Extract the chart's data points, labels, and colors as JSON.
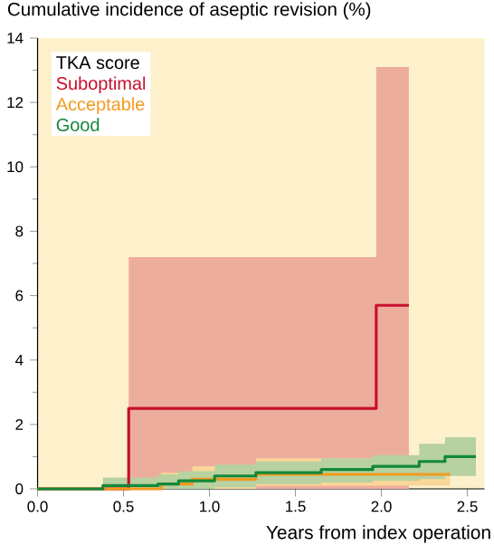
{
  "chart_data": {
    "type": "step",
    "ylabel": "Cumulative incidence of aseptic revision (%)",
    "xlabel": "Years from index operation",
    "legend_title": "TKA score",
    "legend": "top left",
    "xlim": [
      0,
      2.6
    ],
    "ylim": [
      0,
      14
    ],
    "xticks": [
      {
        "value": 0,
        "label": "0.0"
      },
      0.5,
      {
        "value": 1,
        "label": "1.0"
      },
      1.5,
      {
        "value": 2,
        "label": "2.0"
      },
      2.5
    ],
    "yticks": [
      0,
      2,
      4,
      6,
      8,
      10,
      12,
      14
    ],
    "series": [
      {
        "name": "Suboptimal",
        "color": "#c8102e",
        "x": [
          0,
          0.53,
          1.97,
          2.16
        ],
        "values": [
          0,
          2.5,
          5.7,
          5.7
        ],
        "lower": [
          0,
          0,
          0,
          0
        ],
        "upper": [
          0,
          7.2,
          13.1,
          13.1
        ]
      },
      {
        "name": "Acceptable",
        "color": "#f29a1f",
        "x": [
          0,
          0.72,
          0.9,
          1.27,
          2.4
        ],
        "values": [
          0,
          0.15,
          0.3,
          0.45,
          0.45
        ],
        "lower": [
          0,
          0,
          0,
          0.1,
          0.1
        ],
        "upper": [
          0,
          0.5,
          0.7,
          0.95,
          0.95
        ]
      },
      {
        "name": "Good",
        "color": "#12883a",
        "x": [
          0,
          0.38,
          0.7,
          0.82,
          1.03,
          1.27,
          1.65,
          1.95,
          2.22,
          2.37,
          2.55
        ],
        "values": [
          0,
          0.1,
          0.15,
          0.25,
          0.4,
          0.5,
          0.6,
          0.7,
          0.85,
          1.0,
          1.0
        ],
        "lower": [
          0,
          0,
          0,
          0,
          0.05,
          0.15,
          0.2,
          0.25,
          0.3,
          0.4,
          0.4
        ],
        "upper": [
          0,
          0.35,
          0.45,
          0.55,
          0.75,
          0.85,
          0.95,
          1.05,
          1.4,
          1.6,
          1.6
        ]
      }
    ]
  }
}
